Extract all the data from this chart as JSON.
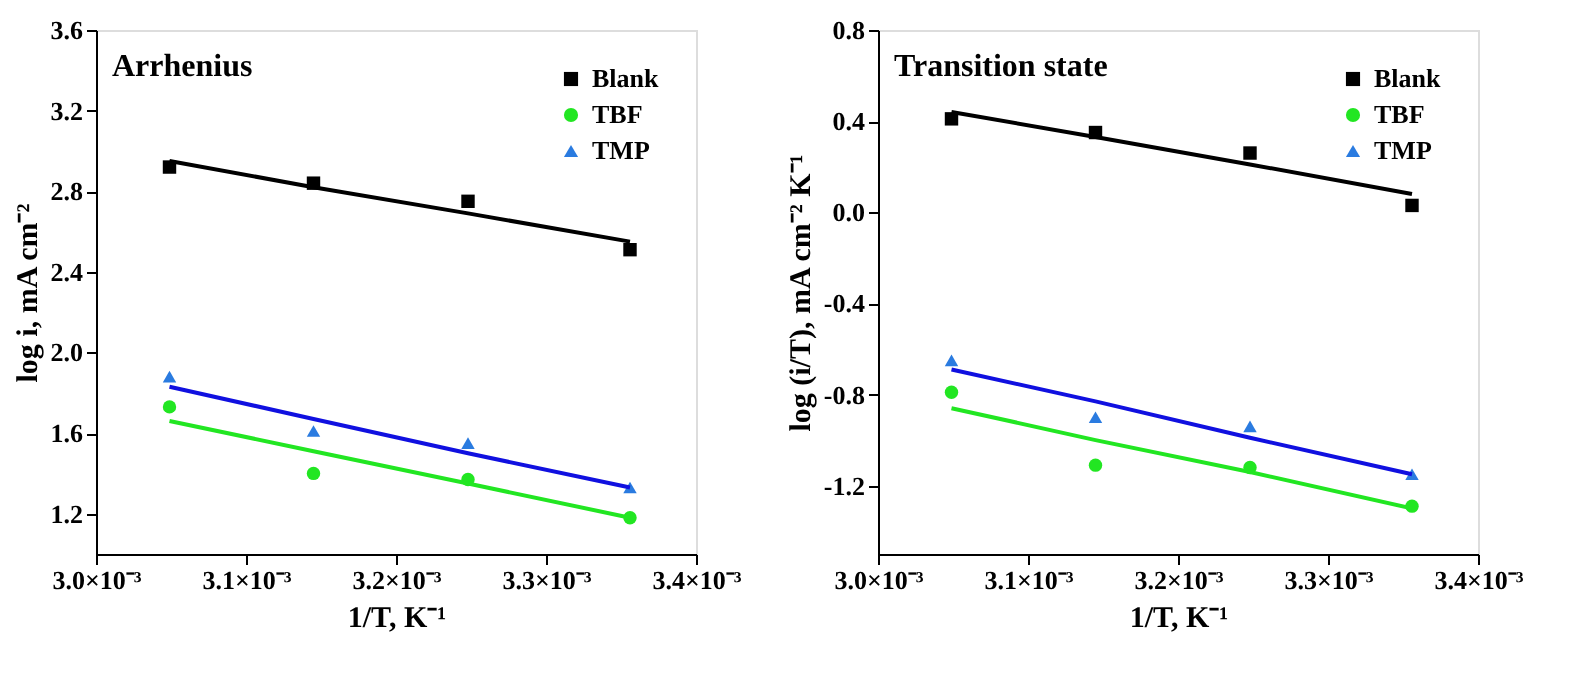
{
  "chart_data": [
    {
      "type": "scatter",
      "title": "Arrhenius",
      "xlabel": "1/T, K⁻¹",
      "ylabel": "log i, mA cm⁻²",
      "xlim": [
        0.003,
        0.0034
      ],
      "ylim": [
        1.0,
        3.6
      ],
      "xticks": [
        {
          "value": 0.003,
          "label": "3.0×10⁻³"
        },
        {
          "value": 0.0031,
          "label": "3.1×10⁻³"
        },
        {
          "value": 0.0032,
          "label": "3.2×10⁻³"
        },
        {
          "value": 0.0033,
          "label": "3.3×10⁻³"
        },
        {
          "value": 0.0034,
          "label": "3.4×10⁻³"
        }
      ],
      "yticks": [
        1.2,
        1.6,
        {
          "value": 2.0,
          "label": "2.0"
        },
        2.4,
        2.8,
        3.2,
        3.6
      ],
      "x": [
        0.003049,
        0.003145,
        0.003248,
        0.003356
      ],
      "grid": false,
      "legend": "top right",
      "series": [
        {
          "name": "Blank",
          "color": "#000000",
          "marker": "square",
          "values": [
            2.92,
            2.84,
            2.75,
            2.51
          ]
        },
        {
          "name": "TBF",
          "color": "#22e622",
          "marker": "circle",
          "values": [
            1.73,
            1.4,
            1.37,
            1.18
          ]
        },
        {
          "name": "TMP",
          "color": "#2a7be0",
          "marker": "triangle",
          "values": [
            1.88,
            1.61,
            1.55,
            1.33
          ]
        },
        {
          "type": "line",
          "color": "#000000",
          "values": [
            2.95,
            2.82,
            2.69,
            2.55
          ]
        },
        {
          "type": "line",
          "color": "#22e622",
          "values": [
            1.66,
            1.51,
            1.35,
            1.18
          ]
        },
        {
          "type": "line",
          "color": "#1010e0",
          "values": [
            1.83,
            1.67,
            1.5,
            1.33
          ]
        }
      ]
    },
    {
      "type": "scatter",
      "title": "Transition state",
      "xlabel": "1/T, K⁻¹",
      "ylabel": "log (i/T), mA cm⁻² K⁻¹",
      "xlim": [
        0.003,
        0.0034
      ],
      "ylim": [
        -1.5,
        0.8
      ],
      "xticks": [
        {
          "value": 0.003,
          "label": "3.0×10⁻³"
        },
        {
          "value": 0.0031,
          "label": "3.1×10⁻³"
        },
        {
          "value": 0.0032,
          "label": "3.2×10⁻³"
        },
        {
          "value": 0.0033,
          "label": "3.3×10⁻³"
        },
        {
          "value": 0.0034,
          "label": "3.4×10⁻³"
        }
      ],
      "yticks": [
        -1.2,
        -0.8,
        -0.4,
        {
          "value": 0.0,
          "label": "0.0"
        },
        0.4,
        0.8
      ],
      "x": [
        0.003049,
        0.003145,
        0.003248,
        0.003356
      ],
      "grid": false,
      "legend": "top right",
      "series": [
        {
          "name": "Blank",
          "color": "#000000",
          "marker": "square",
          "values": [
            0.41,
            0.35,
            0.26,
            0.03
          ]
        },
        {
          "name": "TBF",
          "color": "#22e622",
          "marker": "circle",
          "values": [
            -0.79,
            -1.11,
            -1.12,
            -1.29
          ]
        },
        {
          "name": "TMP",
          "color": "#2a7be0",
          "marker": "triangle",
          "values": [
            -0.65,
            -0.9,
            -0.94,
            -1.15
          ]
        },
        {
          "type": "line",
          "color": "#000000",
          "values": [
            0.44,
            0.33,
            0.21,
            0.08
          ]
        },
        {
          "type": "line",
          "color": "#22e622",
          "values": [
            -0.86,
            -1.0,
            -1.14,
            -1.3
          ]
        },
        {
          "type": "line",
          "color": "#1010e0",
          "values": [
            -0.69,
            -0.83,
            -0.99,
            -1.15
          ]
        }
      ]
    }
  ]
}
